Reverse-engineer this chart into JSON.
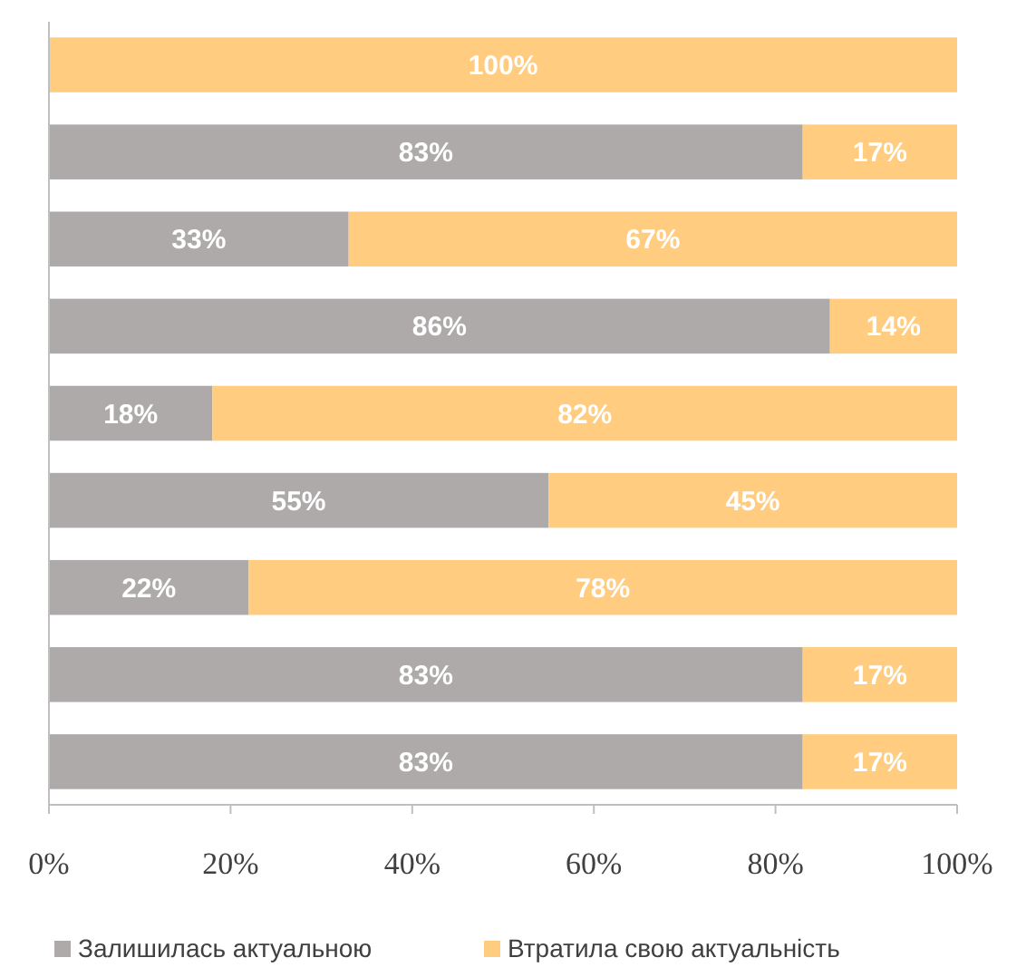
{
  "chart_data": {
    "type": "bar",
    "orientation": "horizontal",
    "stacked": true,
    "categories": [
      null,
      null,
      null,
      null,
      null,
      null,
      null,
      null,
      null
    ],
    "series": [
      {
        "name": "Залишилась актуальною",
        "color": "#aeaaaa",
        "values": [
          0,
          83,
          33,
          86,
          18,
          55,
          22,
          83,
          83
        ],
        "value_labels": [
          null,
          "83%",
          "33%",
          "86%",
          "18%",
          "55%",
          "22%",
          "83%",
          "83%"
        ]
      },
      {
        "name": "Втратила свою актуальність",
        "color": "#ffcc80",
        "values": [
          100,
          17,
          67,
          14,
          82,
          45,
          78,
          17,
          17
        ],
        "value_labels": [
          "100%",
          "17%",
          "67%",
          "14%",
          "82%",
          "45%",
          "78%",
          "17%",
          "17%"
        ]
      }
    ],
    "xlim": [
      0,
      100
    ],
    "xticks": [
      {
        "value": 0,
        "label": "0%"
      },
      {
        "value": 20,
        "label": "20%"
      },
      {
        "value": 40,
        "label": "40%"
      },
      {
        "value": 60,
        "label": "60%"
      },
      {
        "value": 80,
        "label": "80%"
      },
      {
        "value": 100,
        "label": "100%"
      }
    ],
    "grid": false,
    "legend": "bottom"
  }
}
